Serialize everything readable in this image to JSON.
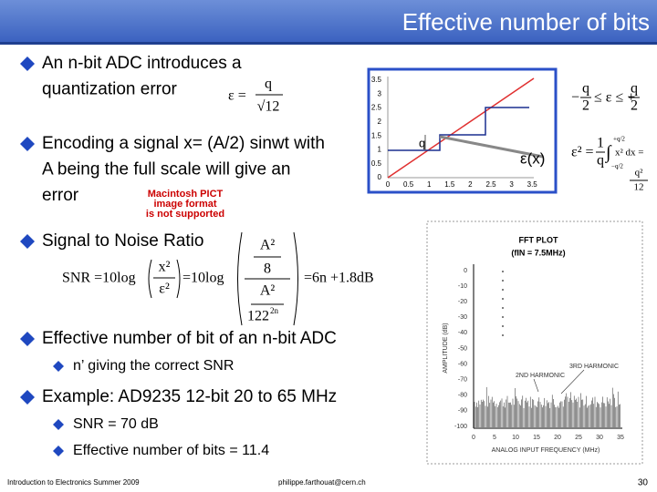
{
  "header": {
    "title": "Effective number of bits"
  },
  "bullets": [
    {
      "lines": [
        "An n-bit ADC introduces a",
        "quantization error"
      ]
    },
    {
      "lines": [
        "Encoding a signal x= (A/2) sinwt with",
        "A being the full scale will give an",
        "error"
      ]
    },
    {
      "lines": [
        "Signal to Noise Ratio"
      ]
    },
    {
      "lines": [
        "Effective number of bit of an n-bit ADC"
      ],
      "sub": [
        "n’ giving the correct SNR"
      ]
    },
    {
      "lines": [
        "Example: AD9235 12-bit 20 to 65 MHz"
      ],
      "sub": [
        "SNR = 70 dB",
        "Effective number of bits = 11.4"
      ]
    }
  ],
  "quant_formula": {
    "lhs": "ε =",
    "num": "q",
    "den": "√12"
  },
  "pict_notice": [
    "Macintosh PICT",
    "image format",
    "is not supported"
  ],
  "quant_plot": {
    "yticks": [
      "3.5",
      "3",
      "2.5",
      "2",
      "1.5",
      "1",
      "0.5",
      "0"
    ],
    "xticks": [
      "0",
      "0.5",
      "1",
      "1.5",
      "2",
      "2.5",
      "3",
      "3.5"
    ],
    "q_label": "q",
    "error_label": "ε(x)"
  },
  "range_formula": {
    "left": "−",
    "q1": "q",
    "two1": "2",
    "mid": "≤ ε ≤ +",
    "q2": "q",
    "two2": "2"
  },
  "power_formula": {
    "lhs": "ε² =",
    "one": "1",
    "q": "q",
    "int": "∫",
    "upper": "+q/2",
    "lower": "−q/2",
    "body": "x² dx =",
    "q2": "q²",
    "twelve": "12"
  },
  "snr_formula": {
    "lhs": "SNR =10log",
    "x2": "x²",
    "e2": "ε²",
    "mid": "=10log",
    "a2top": "A²",
    "eight": "8",
    "a2bot": "A²",
    "twelve": "122",
    "exp": "2n",
    "rhs": "=6n +1.8dB"
  },
  "fft_plot": {
    "title": "FFT PLOT",
    "subtitle": "(fIN = 7.5MHz)",
    "ylabel": "AMPLITUDE (dB)",
    "xlabel": "ANALOG INPUT FREQUENCY (MHz)",
    "yticks": [
      "0",
      "-10",
      "-20",
      "-30",
      "-40",
      "-50",
      "-60",
      "-70",
      "-80",
      "-90",
      "-100"
    ],
    "xticks": [
      "0",
      "5",
      "10",
      "15",
      "20",
      "25",
      "30",
      "35"
    ],
    "harmonic2": "2ND HARMONIC",
    "harmonic3": "3RD HARMONIC"
  },
  "footer": {
    "left": "Introduction to Electronics Summer 2009",
    "center": "philippe.farthouat@cern.ch",
    "page": "30"
  }
}
